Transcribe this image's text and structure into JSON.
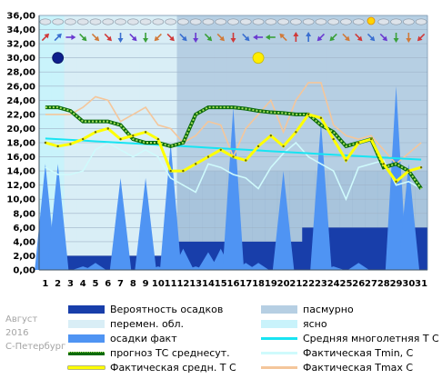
{
  "meta": {
    "month": "Август",
    "year": "2016",
    "city": "С-Петербург"
  },
  "colors": {
    "clear": "#c9f3fb",
    "variable": "#d9eef6",
    "overcast": "#b6cfe3",
    "overcast_dark": "#8fb0cf",
    "precip_prob": "#183eaa",
    "precip_fact": "#4f94f3",
    "forecast": "#0b6a0b",
    "forecast_dot": "#a6e05c",
    "fact_mean": "#ffff00",
    "fact_mean_stroke": "#6a6a00",
    "norm": "#18e4f2",
    "tmin": "#cffafc",
    "tmax": "#f4c69b"
  },
  "legend": [
    {
      "key": "precip_prob",
      "label": "Вероятность осадков",
      "kind": "box"
    },
    {
      "key": "overcast",
      "label": "пасмурно",
      "kind": "box"
    },
    {
      "key": "variable",
      "label": "перемен. обл.",
      "kind": "box"
    },
    {
      "key": "clear",
      "label": "ясно",
      "kind": "box"
    },
    {
      "key": "precip_fact",
      "label": "осадки факт",
      "kind": "box"
    },
    {
      "key": "norm",
      "label": "Средняя многолетняя Т С",
      "kind": "line"
    },
    {
      "key": "forecast",
      "label": "прогноз ТС среднесут.",
      "kind": "dots"
    },
    {
      "key": "tmin",
      "label": "Фактическая Tmin, С",
      "kind": "line"
    },
    {
      "key": "fact_mean",
      "label": "Фактическая средн. Т С",
      "kind": "yline"
    },
    {
      "key": "tmax",
      "label": "Фактическая Tmax С",
      "kind": "line"
    }
  ],
  "chart_data": {
    "type": "line",
    "x_label": "",
    "y_label": "",
    "x": [
      1,
      2,
      3,
      4,
      5,
      6,
      7,
      8,
      9,
      10,
      11,
      12,
      13,
      14,
      15,
      16,
      17,
      18,
      19,
      20,
      21,
      22,
      23,
      24,
      25,
      26,
      27,
      28,
      29,
      30,
      31
    ],
    "xlim": [
      1,
      31
    ],
    "ylim": [
      0,
      36
    ],
    "y_ticks": [
      "0,00",
      "2,00",
      "4,00",
      "6,00",
      "8,00",
      "10,00",
      "12,00",
      "14,00",
      "16,00",
      "18,00",
      "20,00",
      "22,00",
      "24,00",
      "26,00",
      "28,00",
      "30,00",
      "32,00",
      "34,00",
      "36,00"
    ],
    "grid": true,
    "series": [
      {
        "name": "Вероятность осадков",
        "key": "precip_prob",
        "values": [
          2,
          2,
          2,
          2,
          2,
          2,
          2,
          2,
          2,
          2,
          2,
          4,
          4,
          4,
          4,
          4,
          4,
          4,
          4,
          4,
          4,
          6,
          6,
          6,
          6,
          6,
          6,
          6,
          6,
          6,
          6
        ]
      },
      {
        "name": "осадки факт",
        "key": "precip_fact",
        "values": [
          15,
          15,
          0,
          0.5,
          1,
          0,
          13,
          0,
          13,
          0.5,
          18,
          3,
          0.5,
          2.5,
          3,
          23,
          1,
          1,
          0,
          14,
          0,
          0,
          21,
          0.5,
          0,
          1,
          0,
          0,
          26,
          15,
          0
        ]
      },
      {
        "name": "Средняя многолетняя Т С",
        "key": "norm",
        "values": [
          18.6,
          18.5,
          18.4,
          18.3,
          18.2,
          18.1,
          18,
          17.9,
          17.8,
          17.7,
          17.6,
          17.5,
          17.4,
          17.3,
          17.2,
          17.1,
          17,
          16.9,
          16.8,
          16.7,
          16.6,
          16.5,
          16.4,
          16.3,
          16.2,
          16.1,
          16,
          15.9,
          15.8,
          15.7,
          15.6
        ]
      },
      {
        "name": "прогноз ТС среднесут.",
        "key": "forecast",
        "values": [
          23,
          23,
          22.5,
          21,
          21,
          21,
          20.5,
          18.5,
          18,
          18,
          17.5,
          18,
          22,
          23,
          23,
          23,
          22.8,
          22.5,
          22.3,
          22.2,
          22,
          22,
          20.5,
          19.5,
          17.5,
          18,
          18.5,
          14.5,
          15,
          14,
          11.5
        ]
      },
      {
        "name": "Фактическая Tmin, С",
        "key": "tmin",
        "values": [
          14.5,
          13.5,
          13.5,
          14,
          17,
          18,
          17,
          16,
          17,
          16,
          13,
          12,
          11,
          15,
          14.5,
          13.5,
          13,
          11.5,
          14.5,
          16.5,
          18,
          16,
          15,
          14,
          10,
          14.5,
          15,
          15.5,
          12,
          12.5,
          11.5
        ]
      },
      {
        "name": "Фактическая средн. Т С",
        "key": "fact_mean",
        "values": [
          18,
          17.5,
          17.8,
          18.5,
          19.5,
          20,
          18.5,
          19,
          19.5,
          18.5,
          14,
          14,
          15,
          16,
          17,
          16,
          15.5,
          17.5,
          19,
          17.5,
          19.5,
          22,
          21.5,
          18.5,
          15.5,
          18,
          18.5,
          15,
          12.5,
          14,
          14.5
        ]
      },
      {
        "name": "Фактическая Tmax С",
        "key": "tmax",
        "values": [
          22,
          22,
          22,
          23,
          24.5,
          24,
          21,
          22,
          23,
          20.5,
          20,
          18,
          19,
          21,
          20.5,
          16,
          20,
          22,
          24,
          19.5,
          24,
          26.5,
          26.5,
          20.5,
          19,
          18.5,
          19,
          17,
          15,
          16.5,
          18
        ]
      }
    ],
    "clouds": [
      "clear",
      "clear",
      "variable",
      "variable",
      "variable",
      "variable",
      "variable",
      "variable",
      "variable",
      "variable",
      "variable",
      "overcast",
      "overcast",
      "overcast",
      "overcast",
      "overcast",
      "overcast",
      "overcast",
      "overcast",
      "overcast",
      "overcast",
      "overcast",
      "overcast",
      "overcast",
      "overcast",
      "overcast",
      "overcast",
      "overcast",
      "overcast",
      "overcast",
      "overcast"
    ],
    "moon_days": [
      {
        "day": 2,
        "phase": "new",
        "color": "#0d1f8c"
      },
      {
        "day": 18,
        "phase": "full",
        "color": "#ffee00"
      }
    ],
    "wind_dirs": [
      "NE",
      "NE",
      "E",
      "SE",
      "SE",
      "SE",
      "S",
      "SE",
      "S",
      "SW",
      "SE",
      "SE",
      "S",
      "SE",
      "SE",
      "S",
      "SE",
      "W",
      "W",
      "NW",
      "N",
      "N",
      "SW",
      "SW",
      "SE",
      "SE",
      "SE",
      "SE",
      "S",
      "S",
      "SW"
    ],
    "sky_icons": [
      "cloud",
      "cloud",
      "cloud",
      "cloud",
      "cloud",
      "cloud",
      "cloud",
      "cloud",
      "cloud",
      "cloud",
      "cloud",
      "cloud",
      "cloud",
      "cloud",
      "cloud",
      "cloud",
      "cloud",
      "cloud",
      "cloud",
      "cloud",
      "cloud",
      "cloud",
      "cloud",
      "cloud",
      "cloud",
      "cloud",
      "sun",
      "cloud",
      "cloud",
      "cloud",
      "cloud"
    ]
  }
}
